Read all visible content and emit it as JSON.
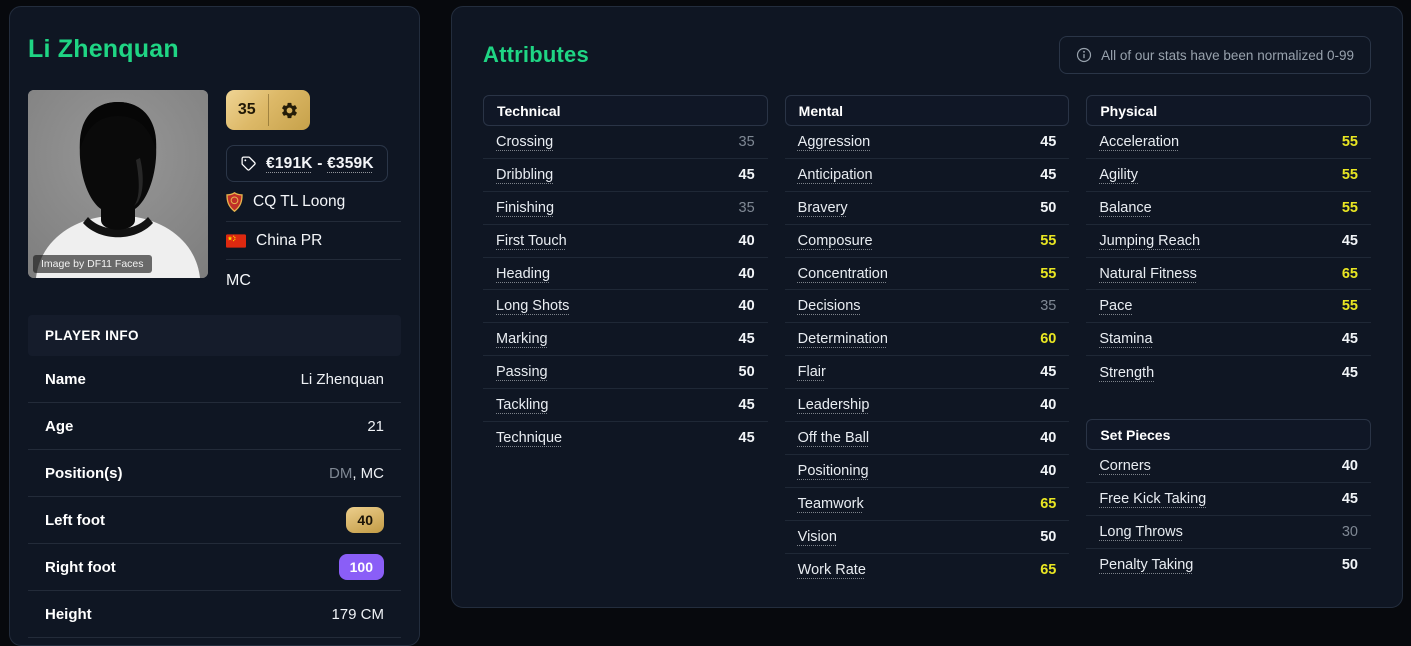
{
  "colors": {
    "accent_green": "#1fd584",
    "value_yellow": "#e9e622",
    "value_gray": "#7f8894",
    "badge_purple": "#8a5ef7"
  },
  "player_card": {
    "name": "Li Zhenquan",
    "photo_caption": "Image by DF11 Faces",
    "rating": "35",
    "value_low": "€191K",
    "value_separator": " - ",
    "value_high": "€359K",
    "club": "CQ TL Loong",
    "nation": "China PR",
    "position_short": "MC",
    "info": {
      "header": "PLAYER INFO",
      "rows": [
        {
          "label": "Name",
          "value": "Li Zhenquan",
          "type": "text"
        },
        {
          "label": "Age",
          "value": "21",
          "type": "text"
        },
        {
          "label": "Position(s)",
          "type": "positions",
          "positions": [
            {
              "text": "DM",
              "muted": true
            },
            {
              "text": "MC",
              "muted": false
            }
          ]
        },
        {
          "label": "Left foot",
          "value": "40",
          "type": "badge-gold"
        },
        {
          "label": "Right foot",
          "value": "100",
          "type": "badge-purple"
        },
        {
          "label": "Height",
          "value": "179 CM",
          "type": "text"
        }
      ]
    }
  },
  "attributes_panel": {
    "title": "Attributes",
    "note": "All of our stats have been normalized 0-99",
    "groups": [
      {
        "id": "technical",
        "title": "Technical",
        "rows": [
          [
            "Crossing",
            35
          ],
          [
            "Dribbling",
            45
          ],
          [
            "Finishing",
            35
          ],
          [
            "First Touch",
            40
          ],
          [
            "Heading",
            40
          ],
          [
            "Long Shots",
            40
          ],
          [
            "Marking",
            45
          ],
          [
            "Passing",
            50
          ],
          [
            "Tackling",
            45
          ],
          [
            "Technique",
            45
          ]
        ]
      },
      {
        "id": "mental",
        "title": "Mental",
        "rows": [
          [
            "Aggression",
            45
          ],
          [
            "Anticipation",
            45
          ],
          [
            "Bravery",
            50
          ],
          [
            "Composure",
            55
          ],
          [
            "Concentration",
            55
          ],
          [
            "Decisions",
            35
          ],
          [
            "Determination",
            60
          ],
          [
            "Flair",
            45
          ],
          [
            "Leadership",
            40
          ],
          [
            "Off the Ball",
            40
          ],
          [
            "Positioning",
            40
          ],
          [
            "Teamwork",
            65
          ],
          [
            "Vision",
            50
          ],
          [
            "Work Rate",
            65
          ]
        ]
      },
      {
        "id": "physical",
        "title": "Physical",
        "rows": [
          [
            "Acceleration",
            55
          ],
          [
            "Agility",
            55
          ],
          [
            "Balance",
            55
          ],
          [
            "Jumping Reach",
            45
          ],
          [
            "Natural Fitness",
            65
          ],
          [
            "Pace",
            55
          ],
          [
            "Stamina",
            45
          ],
          [
            "Strength",
            45
          ]
        ]
      },
      {
        "id": "set_pieces",
        "title": "Set Pieces",
        "rows": [
          [
            "Corners",
            40
          ],
          [
            "Free Kick Taking",
            45
          ],
          [
            "Long Throws",
            30
          ],
          [
            "Penalty Taking",
            50
          ]
        ]
      }
    ]
  }
}
